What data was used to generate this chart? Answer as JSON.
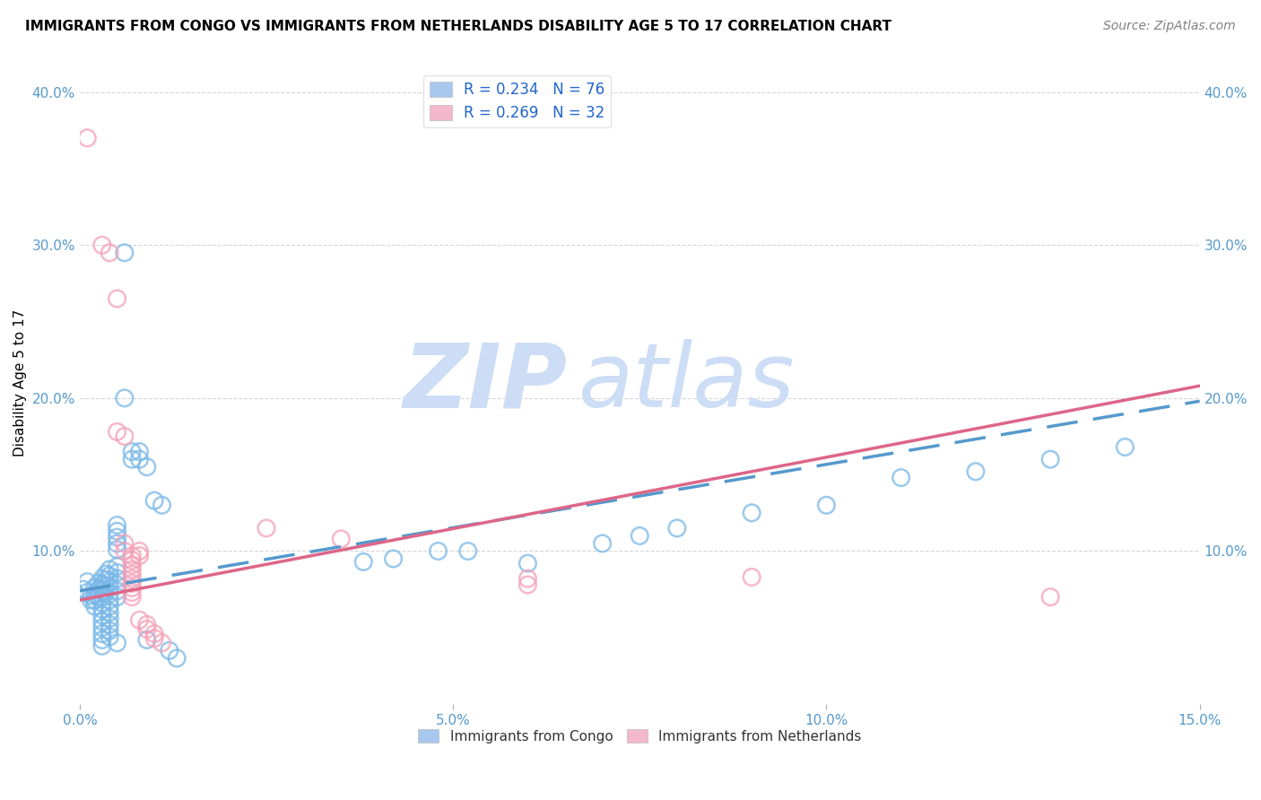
{
  "title": "IMMIGRANTS FROM CONGO VS IMMIGRANTS FROM NETHERLANDS DISABILITY AGE 5 TO 17 CORRELATION CHART",
  "source": "Source: ZipAtlas.com",
  "ylabel": "Disability Age 5 to 17",
  "xlim": [
    0.0,
    0.15
  ],
  "ylim": [
    0.0,
    0.42
  ],
  "xticks": [
    0.0,
    0.05,
    0.1,
    0.15
  ],
  "yticks": [
    0.1,
    0.2,
    0.3,
    0.4
  ],
  "xtick_labels": [
    "0.0%",
    "5.0%",
    "10.0%",
    "15.0%"
  ],
  "ytick_labels": [
    "10.0%",
    "20.0%",
    "30.0%",
    "40.0%"
  ],
  "watermark_zip": "ZIP",
  "watermark_atlas": "atlas",
  "watermark_color": "#ccddf5",
  "blue_color": "#7ab8e8",
  "pink_color": "#f4a0b8",
  "blue_line_color": "#5599cc",
  "pink_line_color": "#dd6688",
  "title_fontsize": 11,
  "axis_label_fontsize": 11,
  "tick_fontsize": 11,
  "legend_fontsize": 12,
  "source_fontsize": 10,
  "background_color": "#ffffff",
  "grid_color": "#cccccc",
  "tick_color_x": "#5599cc",
  "tick_color_y": "#5599cc",
  "blue_scatter": [
    [
      0.0005,
      0.075
    ],
    [
      0.001,
      0.08
    ],
    [
      0.001,
      0.073
    ],
    [
      0.0015,
      0.071
    ],
    [
      0.0015,
      0.068
    ],
    [
      0.002,
      0.076
    ],
    [
      0.002,
      0.072
    ],
    [
      0.002,
      0.068
    ],
    [
      0.002,
      0.064
    ],
    [
      0.0025,
      0.079
    ],
    [
      0.0025,
      0.075
    ],
    [
      0.0025,
      0.07
    ],
    [
      0.003,
      0.082
    ],
    [
      0.003,
      0.078
    ],
    [
      0.003,
      0.074
    ],
    [
      0.003,
      0.07
    ],
    [
      0.003,
      0.066
    ],
    [
      0.003,
      0.062
    ],
    [
      0.003,
      0.058
    ],
    [
      0.003,
      0.054
    ],
    [
      0.003,
      0.05
    ],
    [
      0.003,
      0.046
    ],
    [
      0.003,
      0.042
    ],
    [
      0.003,
      0.038
    ],
    [
      0.0035,
      0.085
    ],
    [
      0.0035,
      0.081
    ],
    [
      0.0035,
      0.077
    ],
    [
      0.0035,
      0.073
    ],
    [
      0.004,
      0.088
    ],
    [
      0.004,
      0.084
    ],
    [
      0.004,
      0.08
    ],
    [
      0.004,
      0.076
    ],
    [
      0.004,
      0.072
    ],
    [
      0.004,
      0.068
    ],
    [
      0.004,
      0.064
    ],
    [
      0.004,
      0.06
    ],
    [
      0.004,
      0.056
    ],
    [
      0.004,
      0.052
    ],
    [
      0.004,
      0.048
    ],
    [
      0.004,
      0.044
    ],
    [
      0.005,
      0.09
    ],
    [
      0.005,
      0.086
    ],
    [
      0.005,
      0.082
    ],
    [
      0.005,
      0.078
    ],
    [
      0.005,
      0.074
    ],
    [
      0.005,
      0.07
    ],
    [
      0.005,
      0.117
    ],
    [
      0.005,
      0.113
    ],
    [
      0.005,
      0.109
    ],
    [
      0.005,
      0.105
    ],
    [
      0.005,
      0.101
    ],
    [
      0.005,
      0.04
    ],
    [
      0.006,
      0.295
    ],
    [
      0.006,
      0.2
    ],
    [
      0.007,
      0.165
    ],
    [
      0.007,
      0.16
    ],
    [
      0.008,
      0.165
    ],
    [
      0.008,
      0.16
    ],
    [
      0.009,
      0.155
    ],
    [
      0.009,
      0.042
    ],
    [
      0.01,
      0.133
    ],
    [
      0.011,
      0.13
    ],
    [
      0.012,
      0.035
    ],
    [
      0.013,
      0.03
    ],
    [
      0.038,
      0.093
    ],
    [
      0.042,
      0.095
    ],
    [
      0.048,
      0.1
    ],
    [
      0.052,
      0.1
    ],
    [
      0.06,
      0.092
    ],
    [
      0.07,
      0.105
    ],
    [
      0.075,
      0.11
    ],
    [
      0.08,
      0.115
    ],
    [
      0.09,
      0.125
    ],
    [
      0.1,
      0.13
    ],
    [
      0.11,
      0.148
    ],
    [
      0.12,
      0.152
    ],
    [
      0.13,
      0.16
    ],
    [
      0.14,
      0.168
    ]
  ],
  "pink_scatter": [
    [
      0.001,
      0.37
    ],
    [
      0.003,
      0.3
    ],
    [
      0.004,
      0.295
    ],
    [
      0.005,
      0.265
    ],
    [
      0.005,
      0.178
    ],
    [
      0.006,
      0.175
    ],
    [
      0.006,
      0.105
    ],
    [
      0.006,
      0.1
    ],
    [
      0.007,
      0.097
    ],
    [
      0.007,
      0.094
    ],
    [
      0.007,
      0.091
    ],
    [
      0.007,
      0.088
    ],
    [
      0.007,
      0.085
    ],
    [
      0.007,
      0.082
    ],
    [
      0.007,
      0.079
    ],
    [
      0.007,
      0.076
    ],
    [
      0.007,
      0.073
    ],
    [
      0.007,
      0.07
    ],
    [
      0.008,
      0.1
    ],
    [
      0.008,
      0.097
    ],
    [
      0.008,
      0.055
    ],
    [
      0.009,
      0.052
    ],
    [
      0.009,
      0.049
    ],
    [
      0.01,
      0.046
    ],
    [
      0.01,
      0.043
    ],
    [
      0.011,
      0.04
    ],
    [
      0.025,
      0.115
    ],
    [
      0.035,
      0.108
    ],
    [
      0.06,
      0.082
    ],
    [
      0.06,
      0.078
    ],
    [
      0.09,
      0.083
    ],
    [
      0.13,
      0.07
    ]
  ],
  "blue_line": [
    [
      0.0,
      0.074
    ],
    [
      0.15,
      0.198
    ]
  ],
  "pink_line": [
    [
      0.0,
      0.068
    ],
    [
      0.15,
      0.208
    ]
  ]
}
